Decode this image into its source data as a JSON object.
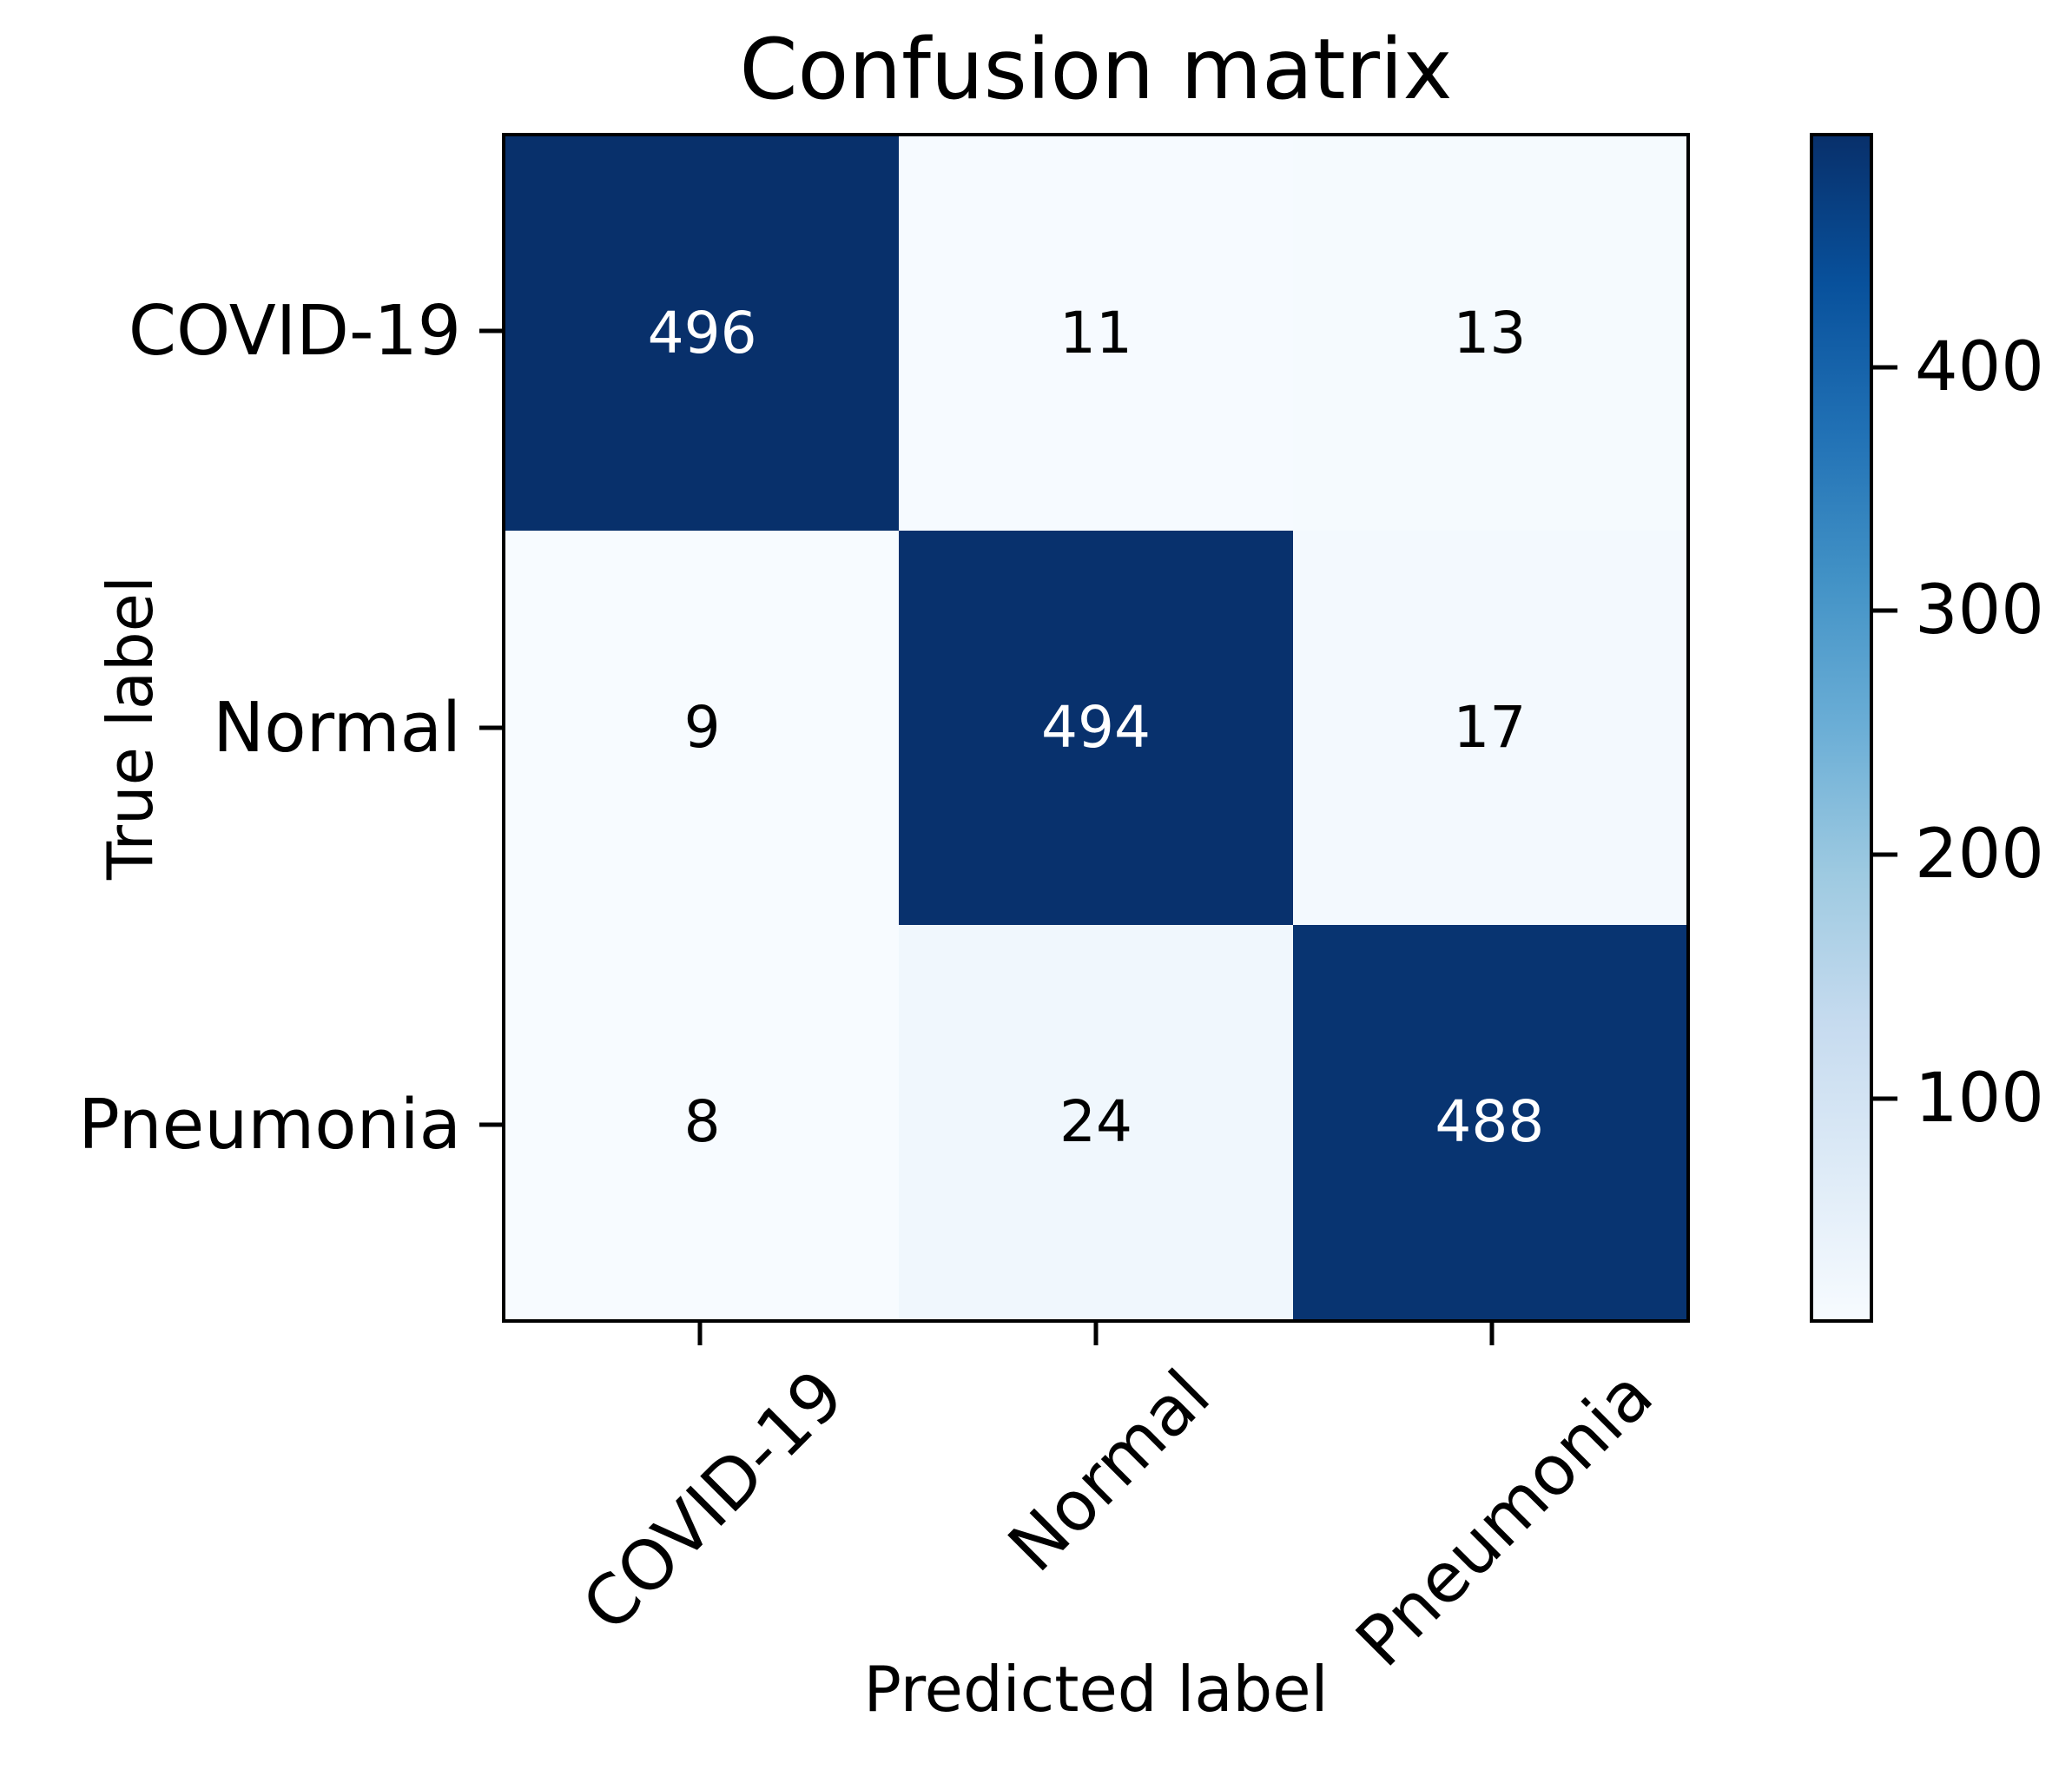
{
  "title": "Confusion matrix",
  "chart_data": {
    "type": "heatmap",
    "title": "Confusion matrix",
    "xlabel": "Predicted label",
    "ylabel": "True label",
    "x_categories": [
      "COVID-19",
      "Normal",
      "Pneumonia"
    ],
    "y_categories": [
      "COVID-19",
      "Normal",
      "Pneumonia"
    ],
    "matrix": [
      [
        496,
        11,
        13
      ],
      [
        9,
        494,
        17
      ],
      [
        8,
        24,
        488
      ]
    ],
    "colormap": "Blues",
    "colormap_stops": [
      "#f7fbff",
      "#deebf7",
      "#c6dbef",
      "#9ecae1",
      "#6baed6",
      "#4292c6",
      "#2171b5",
      "#08519c",
      "#08306b"
    ],
    "vmin": 8,
    "vmax": 496,
    "colorbar_ticks": [
      100,
      200,
      300,
      400
    ],
    "x_tick_rotation": -45,
    "grid": "off",
    "cell_text_color_high": "#ffffff",
    "cell_text_color_low": "#000000",
    "spine_color": "#000000",
    "background_color": "#ffffff"
  }
}
